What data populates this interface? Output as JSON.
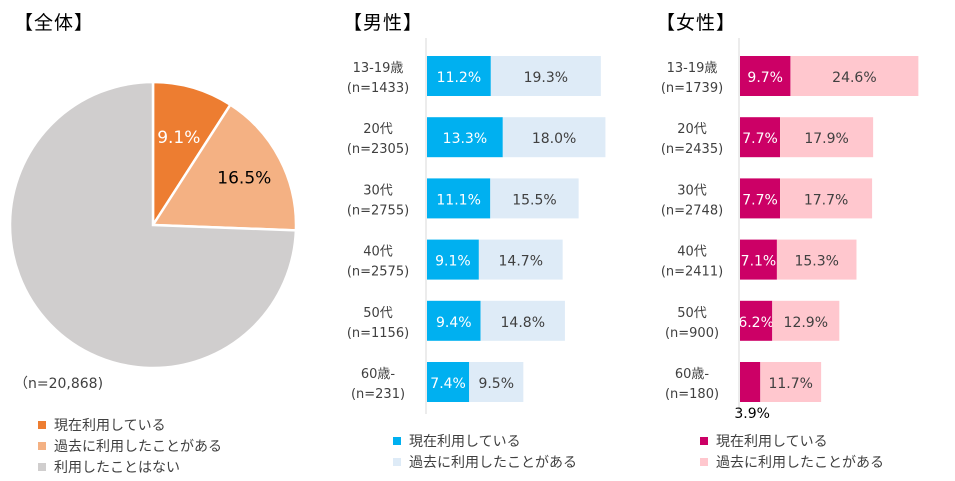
{
  "chart_data": [
    {
      "type": "pie",
      "title": "【全体】",
      "n_label": "（n=20,868)",
      "slices": [
        {
          "label": "現在利用している",
          "value": 9.1,
          "value_label": "9.1%",
          "color": "#ED7D31",
          "text_color": "#FFFFFF"
        },
        {
          "label": "過去に利用したことがある",
          "value": 16.5,
          "value_label": "16.5%",
          "color": "#F4B183",
          "text_color": "#000000"
        },
        {
          "label": "利用したことはない",
          "value": 74.4,
          "value_label": "",
          "color": "#D0CECE",
          "text_color": "#000000"
        }
      ]
    },
    {
      "type": "bar",
      "orientation": "horizontal",
      "stacked": true,
      "title": "【男性】",
      "categories": [
        {
          "line1": "13-19歳",
          "line2": "(n=1433)"
        },
        {
          "line1": "20代",
          "line2": "(n=2305)"
        },
        {
          "line1": "30代",
          "line2": "(n=2755)"
        },
        {
          "line1": "40代",
          "line2": "(n=2575)"
        },
        {
          "line1": "50代",
          "line2": "(n=1156)"
        },
        {
          "line1": "60歳-",
          "line2": "(n=231)"
        }
      ],
      "series": [
        {
          "name": "現在利用している",
          "color": "#00B0F0",
          "label_color": "#FFFFFF",
          "values": [
            11.2,
            13.3,
            11.1,
            9.1,
            9.4,
            7.4
          ],
          "labels": [
            "11.2%",
            "13.3%",
            "11.1%",
            "9.1%",
            "9.4%",
            "7.4%"
          ]
        },
        {
          "name": "過去に利用したことがある",
          "color": "#DEEBF7",
          "label_color": "#404040",
          "values": [
            19.3,
            18.0,
            15.5,
            14.7,
            14.8,
            9.5
          ],
          "labels": [
            "19.3%",
            "18.0%",
            "15.5%",
            "14.7%",
            "14.8%",
            "9.5%"
          ]
        }
      ]
    },
    {
      "type": "bar",
      "orientation": "horizontal",
      "stacked": true,
      "title": "【女性】",
      "categories": [
        {
          "line1": "13-19歳",
          "line2": "(n=1739)"
        },
        {
          "line1": "20代",
          "line2": "(n=2435)"
        },
        {
          "line1": "30代",
          "line2": "(n=2748)"
        },
        {
          "line1": "40代",
          "line2": "(n=2411)"
        },
        {
          "line1": "50代",
          "line2": "(n=900)"
        },
        {
          "line1": "60歳-",
          "line2": "(n=180)"
        }
      ],
      "series": [
        {
          "name": "現在利用している",
          "color": "#CC0066",
          "label_color": "#FFFFFF",
          "values": [
            9.7,
            7.7,
            7.7,
            7.1,
            6.2,
            3.9
          ],
          "labels": [
            "9.7%",
            "7.7%",
            "7.7%",
            "7.1%",
            "6.2%",
            "3.9%"
          ]
        },
        {
          "name": "過去に利用したことがある",
          "color": "#FFC7CE",
          "label_color": "#404040",
          "values": [
            24.6,
            17.9,
            17.7,
            15.3,
            12.9,
            11.7
          ],
          "labels": [
            "24.6%",
            "17.9%",
            "17.7%",
            "15.3%",
            "12.9%",
            "11.7%"
          ]
        }
      ]
    }
  ]
}
